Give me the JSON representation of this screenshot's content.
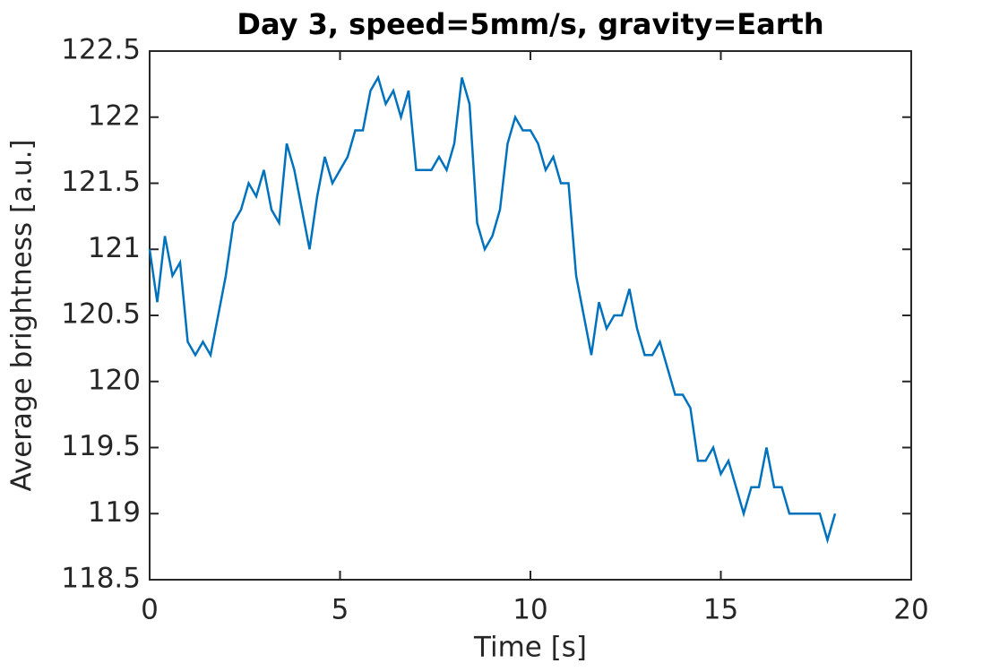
{
  "chart_data": {
    "type": "line",
    "title": "Day 3, speed=5mm/s, gravity=Earth",
    "x_label": "Time [s]",
    "y_label": "Average brightness [a.u.]",
    "xlim": [
      0,
      20
    ],
    "xticks": [
      0,
      5,
      10,
      15,
      20
    ],
    "ylim": [
      118.5,
      122.5
    ],
    "yticks": [
      118.5,
      119,
      119.5,
      120,
      120.5,
      121,
      121.5,
      122,
      122.5
    ],
    "grid": false,
    "series": [
      {
        "color": "#0072bd",
        "x": [
          0,
          0.2,
          0.4,
          0.6,
          0.8,
          1,
          1.2,
          1.4,
          1.6,
          1.8,
          2,
          2.2,
          2.4,
          2.6,
          2.8,
          3,
          3.2,
          3.4,
          3.6,
          3.8,
          4,
          4.2,
          4.4,
          4.6,
          4.8,
          5,
          5.2,
          5.4,
          5.6,
          5.8,
          6,
          6.2,
          6.4,
          6.6,
          6.8,
          7,
          7.2,
          7.4,
          7.6,
          7.8,
          8,
          8.2,
          8.4,
          8.6,
          8.8,
          9,
          9.2,
          9.4,
          9.6,
          9.8,
          10,
          10.2,
          10.4,
          10.6,
          10.8,
          11,
          11.2,
          11.4,
          11.6,
          11.8,
          12,
          12.2,
          12.4,
          12.6,
          12.8,
          13,
          13.2,
          13.4,
          13.6,
          13.8,
          14,
          14.2,
          14.4,
          14.6,
          14.8,
          15,
          15.2,
          15.4,
          15.6,
          15.8,
          16,
          16.2,
          16.4,
          16.6,
          16.8,
          17,
          17.2,
          17.4,
          17.6,
          17.8,
          18
        ],
        "values": [
          121.0,
          120.6,
          121.1,
          120.8,
          120.9,
          120.3,
          120.2,
          120.3,
          120.2,
          120.5,
          120.8,
          121.2,
          121.3,
          121.5,
          121.4,
          121.6,
          121.3,
          121.2,
          121.8,
          121.6,
          121.3,
          121.0,
          121.4,
          121.7,
          121.5,
          121.6,
          121.7,
          121.9,
          121.9,
          122.2,
          122.3,
          122.1,
          122.2,
          122.0,
          122.2,
          121.6,
          121.6,
          121.6,
          121.7,
          121.6,
          121.8,
          122.3,
          122.1,
          121.2,
          121.0,
          121.1,
          121.3,
          121.8,
          122.0,
          121.9,
          121.9,
          121.8,
          121.6,
          121.7,
          121.5,
          121.5,
          120.8,
          120.5,
          120.2,
          120.6,
          120.4,
          120.5,
          120.5,
          120.7,
          120.4,
          120.2,
          120.2,
          120.3,
          120.1,
          119.9,
          119.9,
          119.8,
          119.4,
          119.4,
          119.5,
          119.3,
          119.4,
          119.2,
          119.0,
          119.2,
          119.2,
          119.5,
          119.2,
          119.2,
          119.0,
          119.0,
          119.0,
          119.0,
          119.0,
          118.8,
          119.0
        ]
      }
    ]
  }
}
